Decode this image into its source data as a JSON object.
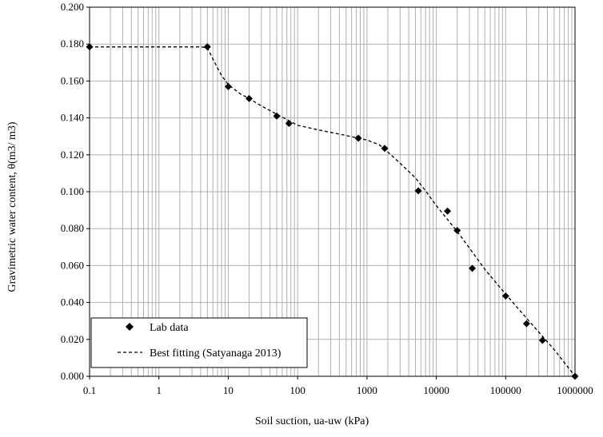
{
  "chart_data": {
    "type": "scatter",
    "title": "",
    "xlabel": "Soil suction, ua-uw (kPa)",
    "ylabel": "Gravimetric water content, θ(m3/ m3)",
    "xscale": "log",
    "xlim": [
      0.1,
      1000000
    ],
    "ylim": [
      0,
      0.2
    ],
    "grid": true,
    "x_tick_labels": [
      "0.1",
      "1",
      "10",
      "100",
      "1000",
      "10000",
      "100000",
      "1000000"
    ],
    "y_tick_labels": [
      "0.000",
      "0.020",
      "0.040",
      "0.060",
      "0.080",
      "0.100",
      "0.120",
      "0.140",
      "0.160",
      "0.180",
      "0.200"
    ],
    "legend_position": "bottom-left",
    "series": [
      {
        "name": "Lab data",
        "marker": "diamond",
        "x": [
          0.1,
          5,
          10,
          20,
          50,
          75,
          750,
          1800,
          5500,
          14500,
          20000,
          33000,
          100000,
          200000,
          340000,
          1000000
        ],
        "y": [
          0.1785,
          0.1785,
          0.157,
          0.1505,
          0.141,
          0.137,
          0.129,
          0.1235,
          0.1005,
          0.0895,
          0.079,
          0.0585,
          0.0435,
          0.0285,
          0.0195,
          0.0
        ]
      },
      {
        "name": "Best fitting (Satyanaga 2013)",
        "line_style": "dashed",
        "x": [
          0.1,
          1,
          4,
          5,
          6,
          7,
          8,
          10,
          15,
          20,
          30,
          50,
          75,
          100,
          200,
          500,
          1000,
          1500,
          2000,
          3000,
          5000,
          7000,
          10000,
          20000,
          30000,
          50000,
          100000,
          200000,
          500000,
          1000000
        ],
        "y": [
          0.1785,
          0.1785,
          0.1785,
          0.178,
          0.172,
          0.167,
          0.163,
          0.158,
          0.153,
          0.1505,
          0.1465,
          0.142,
          0.1385,
          0.136,
          0.1335,
          0.1305,
          0.128,
          0.1255,
          0.1215,
          0.1155,
          0.1075,
          0.1005,
          0.0925,
          0.0785,
          0.0695,
          0.058,
          0.0445,
          0.0315,
          0.0145,
          0.0
        ]
      }
    ],
    "colors": {
      "marker": "#000000",
      "line": "#000000",
      "grid": "#b0b0b0",
      "axis": "#000000"
    }
  }
}
